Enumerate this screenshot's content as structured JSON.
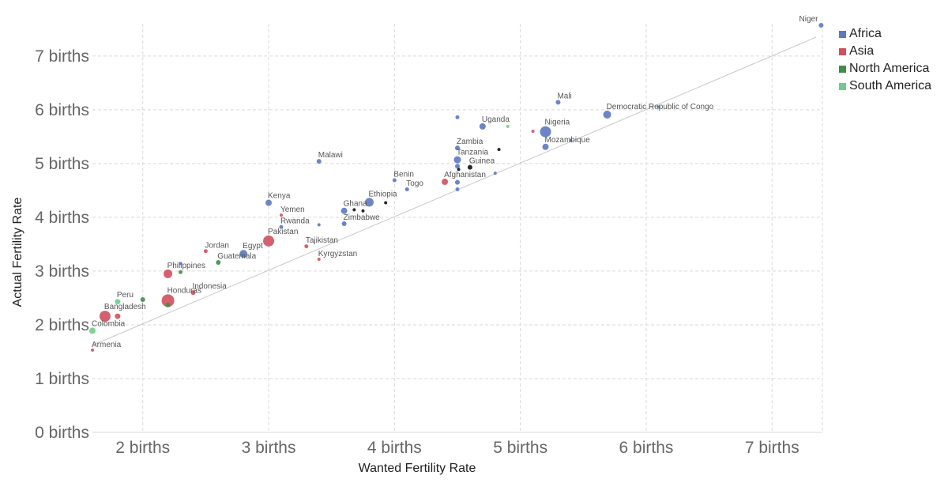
{
  "legend": {
    "africa": {
      "label": "Africa",
      "color": "#5b78c2"
    },
    "asia": {
      "label": "Asia",
      "color": "#d0505f"
    },
    "north_america": {
      "label": "North America",
      "color": "#3e8e49"
    },
    "south_america": {
      "label": "South America",
      "color": "#6fcc8f"
    }
  },
  "chart_data": {
    "type": "scatter",
    "xlabel": "Wanted Fertility Rate",
    "ylabel": "Actual Fertility Rate",
    "xlim": [
      1.6,
      7.4
    ],
    "ylim": [
      0,
      7.6
    ],
    "x_ticks": [
      {
        "value": 2,
        "label": "2 births"
      },
      {
        "value": 3,
        "label": "3 births"
      },
      {
        "value": 4,
        "label": "4 births"
      },
      {
        "value": 5,
        "label": "5 births"
      },
      {
        "value": 6,
        "label": "6 births"
      },
      {
        "value": 7,
        "label": "7 births"
      }
    ],
    "y_ticks": [
      {
        "value": 0,
        "label": "0 births"
      },
      {
        "value": 1,
        "label": "1 births"
      },
      {
        "value": 2,
        "label": "2 births"
      },
      {
        "value": 3,
        "label": "3 births"
      },
      {
        "value": 4,
        "label": "4 births"
      },
      {
        "value": 5,
        "label": "5 births"
      },
      {
        "value": 6,
        "label": "6 births"
      },
      {
        "value": 7,
        "label": "7 births"
      }
    ],
    "grid": true,
    "legend_position": "top-right",
    "reference_line": {
      "x": [
        1.6,
        7.35
      ],
      "y": [
        1.62,
        7.35
      ],
      "color": "#c8c8c8"
    },
    "points": [
      {
        "label": "Niger",
        "x": 7.39,
        "y": 7.57,
        "region": "africa",
        "size": 3
      },
      {
        "label": "Mali",
        "x": 5.3,
        "y": 6.14,
        "region": "africa",
        "size": 3
      },
      {
        "label": "Democratic Republic of Congo",
        "x": 5.69,
        "y": 5.91,
        "region": "africa",
        "size": 5
      },
      {
        "label": "",
        "x": 6.1,
        "y": 6.05,
        "region": "africa",
        "size": 2
      },
      {
        "label": "Uganda",
        "x": 4.7,
        "y": 5.69,
        "region": "africa",
        "size": 4
      },
      {
        "label": "",
        "x": 4.5,
        "y": 5.86,
        "region": "africa",
        "size": 2.5
      },
      {
        "label": "",
        "x": 4.9,
        "y": 5.69,
        "region": "south_america",
        "size": 2
      },
      {
        "label": "Nigeria",
        "x": 5.2,
        "y": 5.59,
        "region": "africa",
        "size": 7
      },
      {
        "label": "",
        "x": 5.1,
        "y": 5.6,
        "region": "asia",
        "size": 2
      },
      {
        "label": "Mozambique",
        "x": 5.2,
        "y": 5.31,
        "region": "africa",
        "size": 4
      },
      {
        "label": "",
        "x": 5.4,
        "y": 5.43,
        "region": "africa",
        "size": 2
      },
      {
        "label": "",
        "x": 4.83,
        "y": 5.26,
        "region": "black",
        "size": 2
      },
      {
        "label": "Zambia",
        "x": 4.5,
        "y": 5.29,
        "region": "africa",
        "size": 3
      },
      {
        "label": "Tanzania",
        "x": 4.5,
        "y": 5.07,
        "region": "africa",
        "size": 4.5
      },
      {
        "label": "",
        "x": 4.5,
        "y": 4.95,
        "region": "africa",
        "size": 3
      },
      {
        "label": "Guinea",
        "x": 4.6,
        "y": 4.93,
        "region": "black",
        "size": 3
      },
      {
        "label": "",
        "x": 4.51,
        "y": 4.89,
        "region": "black",
        "size": 2
      },
      {
        "label": "",
        "x": 4.8,
        "y": 4.82,
        "region": "africa",
        "size": 2
      },
      {
        "label": "Afghanistan",
        "x": 4.4,
        "y": 4.66,
        "region": "asia",
        "size": 4
      },
      {
        "label": "",
        "x": 4.5,
        "y": 4.65,
        "region": "africa",
        "size": 3
      },
      {
        "label": "",
        "x": 4.5,
        "y": 4.52,
        "region": "africa",
        "size": 2.5
      },
      {
        "label": "Benin",
        "x": 4.0,
        "y": 4.69,
        "region": "africa",
        "size": 2.5
      },
      {
        "label": "Togo",
        "x": 4.1,
        "y": 4.52,
        "region": "africa",
        "size": 2.5
      },
      {
        "label": "Malawi",
        "x": 3.4,
        "y": 5.04,
        "region": "africa",
        "size": 3
      },
      {
        "label": "Ethiopia",
        "x": 3.8,
        "y": 4.28,
        "region": "africa",
        "size": 5.5
      },
      {
        "label": "",
        "x": 3.93,
        "y": 4.27,
        "region": "black",
        "size": 2
      },
      {
        "label": "Ghana",
        "x": 3.6,
        "y": 4.12,
        "region": "africa",
        "size": 4
      },
      {
        "label": "",
        "x": 3.75,
        "y": 4.12,
        "region": "black",
        "size": 2
      },
      {
        "label": "",
        "x": 3.68,
        "y": 4.14,
        "region": "black",
        "size": 2
      },
      {
        "label": "Zimbabwe",
        "x": 3.6,
        "y": 3.88,
        "region": "africa",
        "size": 3
      },
      {
        "label": "Kenya",
        "x": 3.0,
        "y": 4.27,
        "region": "africa",
        "size": 4
      },
      {
        "label": "Yemen",
        "x": 3.1,
        "y": 4.04,
        "region": "asia",
        "size": 2
      },
      {
        "label": "Rwanda",
        "x": 3.1,
        "y": 3.82,
        "region": "africa",
        "size": 2.5
      },
      {
        "label": "",
        "x": 3.4,
        "y": 3.86,
        "region": "africa",
        "size": 2
      },
      {
        "label": "Pakistan",
        "x": 3.0,
        "y": 3.56,
        "region": "asia",
        "size": 7
      },
      {
        "label": "Tajikistan",
        "x": 3.3,
        "y": 3.46,
        "region": "asia",
        "size": 2.5
      },
      {
        "label": "Kyrgyzstan",
        "x": 3.4,
        "y": 3.22,
        "region": "asia",
        "size": 2
      },
      {
        "label": "Egypt",
        "x": 2.8,
        "y": 3.32,
        "region": "africa",
        "size": 5
      },
      {
        "label": "Jordan",
        "x": 2.5,
        "y": 3.37,
        "region": "asia",
        "size": 2.5
      },
      {
        "label": "Guatemala",
        "x": 2.6,
        "y": 3.16,
        "region": "north_america",
        "size": 3
      },
      {
        "label": "",
        "x": 2.3,
        "y": 3.14,
        "region": "africa",
        "size": 2
      },
      {
        "label": "Philippines",
        "x": 2.2,
        "y": 2.95,
        "region": "asia",
        "size": 5.5
      },
      {
        "label": "",
        "x": 2.3,
        "y": 2.98,
        "region": "north_america",
        "size": 2.5
      },
      {
        "label": "Indonesia",
        "x": 2.4,
        "y": 2.6,
        "region": "asia",
        "size": 3
      },
      {
        "label": "Honduras",
        "x": 2.2,
        "y": 2.45,
        "region": "asia",
        "size": 8
      },
      {
        "label": "",
        "x": 2.2,
        "y": 2.37,
        "region": "north_america",
        "size": 3
      },
      {
        "label": "Peru",
        "x": 1.8,
        "y": 2.43,
        "region": "south_america",
        "size": 3.5
      },
      {
        "label": "",
        "x": 2.0,
        "y": 2.47,
        "region": "north_america",
        "size": 3
      },
      {
        "label": "Bangladesh",
        "x": 1.7,
        "y": 2.16,
        "region": "asia",
        "size": 7
      },
      {
        "label": "",
        "x": 1.8,
        "y": 2.16,
        "region": "asia",
        "size": 3.5
      },
      {
        "label": "Colombia",
        "x": 1.6,
        "y": 1.89,
        "region": "south_america",
        "size": 4
      },
      {
        "label": "Armenia",
        "x": 1.6,
        "y": 1.53,
        "region": "asia",
        "size": 2
      }
    ]
  }
}
